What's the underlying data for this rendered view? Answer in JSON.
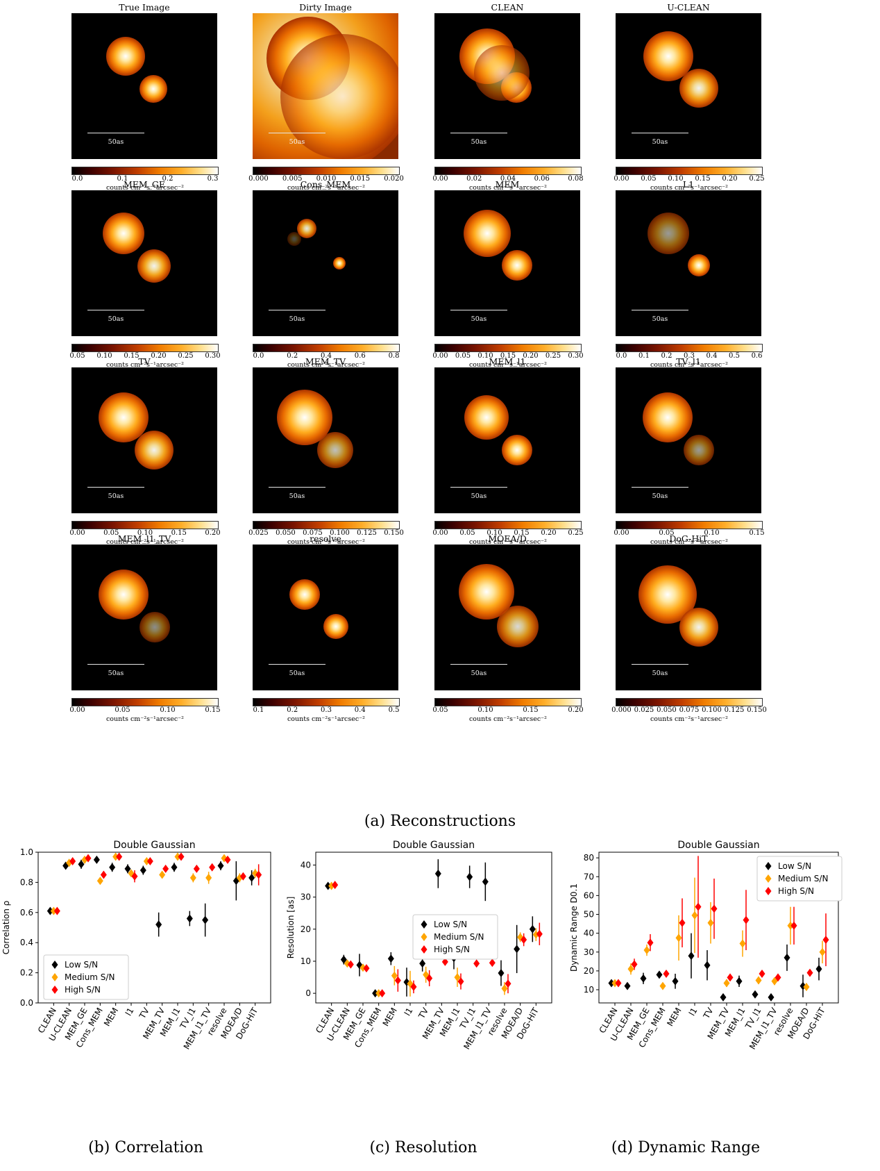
{
  "panels": [
    {
      "title": "True Image",
      "scale": "50as",
      "ticks": [
        "0.0",
        "0.1",
        "0.2",
        "0.3"
      ],
      "unit": "counts cm⁻²s⁻¹arcsec⁻²"
    },
    {
      "title": "Dirty Image",
      "scale": "50as",
      "ticks": [
        "0.000",
        "0.005",
        "0.010",
        "0.015",
        "0.020"
      ],
      "unit": "counts cm⁻²s⁻¹arcsec⁻²"
    },
    {
      "title": "CLEAN",
      "scale": "50as",
      "ticks": [
        "0.00",
        "0.02",
        "0.04",
        "0.06",
        "0.08"
      ],
      "unit": "counts cm⁻²s⁻¹arcsec⁻²"
    },
    {
      "title": "U-CLEAN",
      "scale": "50as",
      "ticks": [
        "0.00",
        "0.05",
        "0.10",
        "0.15",
        "0.20",
        "0.25"
      ],
      "unit": "counts cm⁻²s⁻¹arcsec⁻²"
    },
    {
      "title": "MEM_GE",
      "scale": "50as",
      "ticks": [
        "0.05",
        "0.10",
        "0.15",
        "0.20",
        "0.25",
        "0.30"
      ],
      "unit": "counts cm⁻²s⁻¹arcsec⁻²"
    },
    {
      "title": "Cons_MEM",
      "scale": "50as",
      "ticks": [
        "0.0",
        "0.2",
        "0.4",
        "0.6",
        "0.8"
      ],
      "unit": "counts cm⁻²s⁻¹arcsec⁻²"
    },
    {
      "title": "MEM",
      "scale": "50as",
      "ticks": [
        "0.00",
        "0.05",
        "0.10",
        "0.15",
        "0.20",
        "0.25",
        "0.30"
      ],
      "unit": "counts cm⁻²s⁻¹arcsec⁻²"
    },
    {
      "title": "L1",
      "scale": "50as",
      "ticks": [
        "0.0",
        "0.1",
        "0.2",
        "0.3",
        "0.4",
        "0.5",
        "0.6"
      ],
      "unit": "counts cm⁻²s⁻¹arcsec⁻²"
    },
    {
      "title": "TV",
      "scale": "50as",
      "ticks": [
        "0.00",
        "0.05",
        "0.10",
        "0.15",
        "0.20"
      ],
      "unit": "counts cm⁻²s⁻¹arcsec⁻²"
    },
    {
      "title": "MEM_TV",
      "scale": "50as",
      "ticks": [
        "0.025",
        "0.050",
        "0.075",
        "0.100",
        "0.125",
        "0.150"
      ],
      "unit": "counts cm⁻²s⁻¹arcsec⁻²"
    },
    {
      "title": "MEM_l1",
      "scale": "50as",
      "ticks": [
        "0.00",
        "0.05",
        "0.10",
        "0.15",
        "0.20",
        "0.25"
      ],
      "unit": "counts cm⁻²s⁻¹arcsec⁻²"
    },
    {
      "title": "TV_l1",
      "scale": "50as",
      "ticks": [
        "0.00",
        "0.05",
        "0.10",
        "0.15"
      ],
      "unit": "counts cm⁻²s⁻¹arcsec⁻²"
    },
    {
      "title": "MEM_l1_TV",
      "scale": "50as",
      "ticks": [
        "0.00",
        "0.05",
        "0.10",
        "0.15"
      ],
      "unit": "counts cm⁻²s⁻¹arcsec⁻²"
    },
    {
      "title": "resolve",
      "scale": "50as",
      "ticks": [
        "0.1",
        "0.2",
        "0.3",
        "0.4",
        "0.5"
      ],
      "unit": "counts cm⁻²s⁻¹arcsec⁻²"
    },
    {
      "title": "MOEA/D",
      "scale": "50as",
      "ticks": [
        "0.05",
        "0.10",
        "0.15",
        "0.20"
      ],
      "unit": "counts cm⁻²s⁻¹arcsec⁻²"
    },
    {
      "title": "DoG-HiT",
      "scale": "50as",
      "ticks": [
        "0.000",
        "0.025",
        "0.050",
        "0.075",
        "0.100",
        "0.125",
        "0.150"
      ],
      "unit": "counts cm⁻²s⁻¹arcsec⁻²"
    }
  ],
  "captions": {
    "a": "(a) Reconstructions",
    "b": "(b) Correlation",
    "c": "(c) Resolution",
    "d": "(d) Dynamic Range"
  },
  "colors": {
    "low": "#000000",
    "medium": "#ffa500",
    "high": "#ff0000"
  },
  "chart_data": [
    {
      "type": "scatter",
      "title": "Double Gaussian",
      "xlabel": "",
      "ylabel": "Correlation ρ",
      "ylim": [
        0.0,
        1.0
      ],
      "yticks": [
        "0.0",
        "0.2",
        "0.4",
        "0.6",
        "0.8",
        "1.0"
      ],
      "legend_position": "lower-left",
      "categories": [
        "CLEAN",
        "U-CLEAN",
        "MEM_GE",
        "Cons_MEM",
        "MEM",
        "l1",
        "TV",
        "MEM_TV",
        "MEM_l1",
        "TV_l1",
        "MEM_l1_TV",
        "resolve",
        "MOEA/D",
        "DoG-HiT"
      ],
      "series": [
        {
          "name": "Low S/N",
          "values": [
            0.61,
            0.91,
            0.92,
            0.95,
            0.9,
            0.89,
            0.88,
            0.52,
            0.9,
            0.56,
            0.55,
            0.91,
            0.81,
            0.83
          ],
          "errors": [
            0.01,
            0.02,
            0.03,
            0.01,
            0.03,
            0.03,
            0.03,
            0.08,
            0.03,
            0.05,
            0.11,
            0.03,
            0.13,
            0.05
          ]
        },
        {
          "name": "Medium S/N",
          "values": [
            0.61,
            0.93,
            0.95,
            0.81,
            0.97,
            0.86,
            0.94,
            0.85,
            0.97,
            0.83,
            0.83,
            0.96,
            0.83,
            0.86
          ],
          "errors": [
            0.01,
            0.01,
            0.01,
            0.01,
            0.01,
            0.02,
            0.01,
            0.02,
            0.01,
            0.03,
            0.04,
            0.01,
            0.03,
            0.03
          ]
        },
        {
          "name": "High S/N",
          "values": [
            0.61,
            0.94,
            0.96,
            0.85,
            0.97,
            0.84,
            0.94,
            0.89,
            0.97,
            0.89,
            0.9,
            0.95,
            0.84,
            0.85
          ],
          "errors": [
            0.01,
            0.01,
            0.01,
            0.01,
            0.01,
            0.04,
            0.01,
            0.01,
            0.01,
            0.01,
            0.01,
            0.01,
            0.02,
            0.07
          ]
        }
      ]
    },
    {
      "type": "scatter",
      "title": "Double Gaussian",
      "xlabel": "",
      "ylabel": "Resolution [as]",
      "ylim": [
        -3,
        44
      ],
      "yticks": [
        "0",
        "10",
        "20",
        "30",
        "40"
      ],
      "legend_position": "center",
      "categories": [
        "CLEAN",
        "U-CLEAN",
        "MEM_GE",
        "Cons_MEM",
        "MEM",
        "l1",
        "TV",
        "MEM_TV",
        "MEM_l1",
        "TV_l1",
        "MEM_l1_TV",
        "resolve",
        "MOEA/D",
        "DoG-HiT"
      ],
      "series": [
        {
          "name": "Low S/N",
          "values": [
            33.5,
            10.5,
            8.8,
            0,
            10.8,
            3.5,
            9.3,
            37.3,
            11,
            36.3,
            34.8,
            6.3,
            13.8,
            20
          ],
          "errors": [
            0.5,
            1.5,
            3.5,
            0.5,
            2,
            4.5,
            2.5,
            4.5,
            3.5,
            3.5,
            6,
            4,
            7.5,
            4
          ]
        },
        {
          "name": "Medium S/N",
          "values": [
            33.5,
            9.3,
            8,
            0,
            5.5,
            3,
            5.8,
            12.8,
            5,
            12.7,
            12.5,
            1.5,
            17.5,
            18.3
          ],
          "errors": [
            0.5,
            1,
            1,
            0.3,
            3,
            4,
            2.5,
            1,
            3,
            1,
            1.5,
            2,
            1.5,
            2
          ]
        },
        {
          "name": "High S/N",
          "values": [
            33.8,
            9,
            7.8,
            0,
            4,
            2,
            4.7,
            9.8,
            3.7,
            9.3,
            9.5,
            3,
            16.7,
            18.5
          ],
          "errors": [
            0.5,
            1,
            1,
            0.3,
            3.5,
            2,
            2.5,
            1,
            2.5,
            1,
            1,
            3,
            2,
            3.5
          ]
        }
      ]
    },
    {
      "type": "scatter",
      "title": "Double Gaussian",
      "xlabel": "",
      "ylabel": "Dynamic Range D0.1",
      "ylim": [
        3,
        83
      ],
      "yticks": [
        "10",
        "20",
        "30",
        "40",
        "50",
        "60",
        "70",
        "80"
      ],
      "legend_position": "top-right",
      "categories": [
        "CLEAN",
        "U-CLEAN",
        "MEM_GE",
        "Cons_MEM",
        "MEM",
        "l1",
        "TV",
        "MEM_TV",
        "MEM_l1",
        "TV_l1",
        "MEM_l1_TV",
        "resolve",
        "MOEA/D",
        "DoG-HiT"
      ],
      "series": [
        {
          "name": "Low S/N",
          "values": [
            13.5,
            12,
            16,
            18,
            14.5,
            28,
            23,
            6,
            14.5,
            7.5,
            6,
            27,
            12,
            21
          ],
          "errors": [
            1,
            1.5,
            3,
            1.5,
            4,
            12,
            8,
            1,
            3,
            1,
            1,
            7,
            6,
            6
          ]
        },
        {
          "name": "Medium S/N",
          "values": [
            13.5,
            21,
            31,
            12,
            37.5,
            49.5,
            45.5,
            13.5,
            34.5,
            15,
            14.5,
            44,
            11.5,
            30
          ],
          "errors": [
            1,
            3,
            3,
            1.5,
            12,
            20,
            11,
            2,
            7,
            2,
            2,
            10,
            2,
            6
          ]
        },
        {
          "name": "High S/N",
          "values": [
            13.5,
            23.5,
            35,
            18.5,
            45.5,
            54,
            53,
            16.5,
            47,
            18.5,
            16.5,
            44,
            19,
            36.5
          ],
          "errors": [
            1,
            3,
            4.5,
            1.5,
            13,
            27,
            16,
            1.5,
            16,
            1.5,
            1.5,
            10,
            1.5,
            14
          ]
        }
      ]
    }
  ]
}
